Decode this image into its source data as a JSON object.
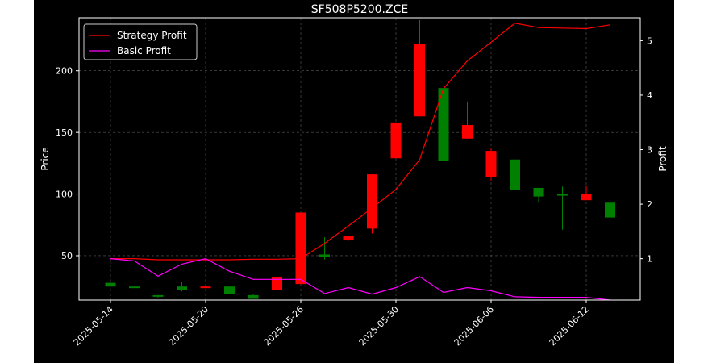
{
  "chart_data": {
    "type": "candlestick",
    "title": "SF508P5200.ZCE",
    "ylabel": "Price",
    "y2label": "Profit",
    "ylim": [
      14,
      243
    ],
    "y2lim": [
      0.24,
      5.42
    ],
    "yticks": [
      50,
      100,
      150,
      200
    ],
    "y2ticks": [
      1,
      2,
      3,
      4,
      5
    ],
    "xticks": [
      "2025-05-14",
      "2025-05-20",
      "2025-05-26",
      "2025-05-30",
      "2025-06-06",
      "2025-06-12"
    ],
    "xtick_index": [
      0,
      4,
      8,
      12,
      16,
      20
    ],
    "grid": true,
    "legend_position": "top-left",
    "colors": {
      "up": "#ff0000",
      "down": "#008000",
      "strategy": "#ff0000",
      "basic": "#ff00ff",
      "background": "#000000",
      "figure": "#000000",
      "text": "#ffffff",
      "grid": "#808080"
    },
    "candles": [
      {
        "open": 28,
        "close": 25,
        "high": 28,
        "low": 25
      },
      {
        "open": 25,
        "close": 24,
        "high": 25,
        "low": 24
      },
      {
        "open": 18,
        "close": 17,
        "high": 18,
        "low": 16
      },
      {
        "open": 25,
        "close": 22,
        "high": 29,
        "low": 21
      },
      {
        "open": 24,
        "close": 25,
        "high": 25,
        "low": 24
      },
      {
        "open": 25,
        "close": 19,
        "high": 25,
        "low": 19
      },
      {
        "open": 18,
        "close": 15,
        "high": 19,
        "low": 15
      },
      {
        "open": 22,
        "close": 33,
        "high": 33,
        "low": 22
      },
      {
        "open": 27,
        "close": 85,
        "high": 85,
        "low": 27
      },
      {
        "open": 51,
        "close": 49,
        "high": 65,
        "low": 47
      },
      {
        "open": 63,
        "close": 66,
        "high": 66,
        "low": 62
      },
      {
        "open": 72,
        "close": 116,
        "high": 116,
        "low": 68
      },
      {
        "open": 129,
        "close": 158,
        "high": 158,
        "low": 129
      },
      {
        "open": 163,
        "close": 222,
        "high": 241,
        "low": 163
      },
      {
        "open": 186,
        "close": 127,
        "high": 186,
        "low": 127
      },
      {
        "open": 145,
        "close": 156,
        "high": 175,
        "low": 145
      },
      {
        "open": 114,
        "close": 135,
        "high": 137,
        "low": 111
      },
      {
        "open": 128,
        "close": 103,
        "high": 128,
        "low": 103
      },
      {
        "open": 105,
        "close": 98,
        "high": 105,
        "low": 93
      },
      {
        "open": 100,
        "close": 99,
        "high": 106,
        "low": 71
      },
      {
        "open": 95,
        "close": 100,
        "high": 107,
        "low": 95
      },
      {
        "open": 93,
        "close": 81,
        "high": 108,
        "low": 69
      }
    ],
    "series": [
      {
        "name": "Strategy Profit",
        "color": "#ff0000",
        "values": [
          1.0,
          1.0,
          0.98,
          0.98,
          0.98,
          0.98,
          0.99,
          0.99,
          1.0,
          1.28,
          1.6,
          1.93,
          2.27,
          2.82,
          4.12,
          4.63,
          4.97,
          5.32,
          5.24,
          5.23,
          5.22,
          5.29
        ]
      },
      {
        "name": "Basic Profit",
        "color": "#ff00ff",
        "values": [
          1.0,
          0.96,
          0.68,
          0.9,
          1.0,
          0.77,
          0.62,
          0.62,
          0.62,
          0.36,
          0.47,
          0.35,
          0.47,
          0.67,
          0.38,
          0.47,
          0.41,
          0.3,
          0.29,
          0.29,
          0.29,
          0.24
        ]
      }
    ]
  }
}
